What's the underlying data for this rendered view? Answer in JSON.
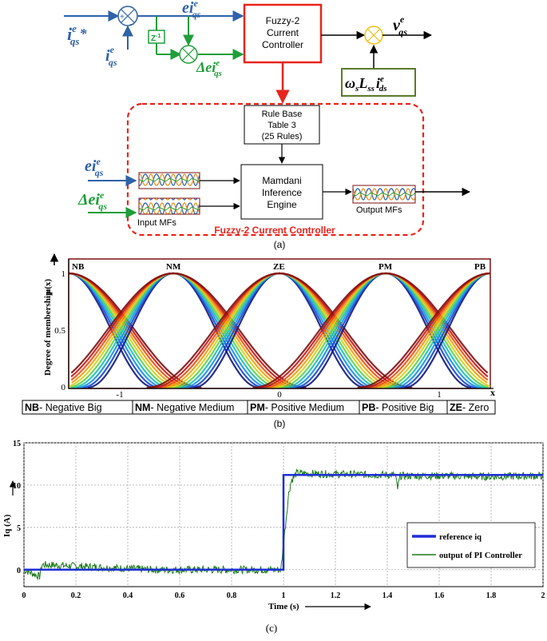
{
  "colors": {
    "blue_signal": "#2f62a8",
    "green_signal": "#1f9e3a",
    "red_box": "#e8241c",
    "yellow_sum": "#f2c014",
    "olive_box": "#5a7a2a",
    "ref_line": "#1e2fd6",
    "pi_line": "#1a7a1a",
    "mf_border": "#7a1010"
  },
  "panel_a": {
    "input_ref_label": "i",
    "input_ref_sup": "e",
    "input_ref_sub": "qs",
    "input_ref_star": "*",
    "feedback_label": "i",
    "feedback_sup": "e",
    "feedback_sub": "qs",
    "sum_plus": "+",
    "sum_minus": "−",
    "error_label": "ei",
    "error_sup": "e",
    "error_sub": "qs",
    "delay_label": "Z",
    "delay_sup": "-1",
    "delta_error_label": "Δei",
    "delta_error_sup": "e",
    "delta_error_sub": "qs",
    "controller_title": [
      "Fuzzy-2",
      "Current",
      "Controller"
    ],
    "output_label": "v",
    "output_sup": "e",
    "output_sub": "qs",
    "decoupling_label": "ω",
    "decoupling_sub1": "s",
    "decoupling_L": "L",
    "decoupling_sub2": "ss",
    "decoupling_i": "i",
    "decoupling_sup": "e",
    "decoupling_sub3": "ds",
    "rule_base": [
      "Rule Base",
      "Table 3",
      "(25 Rules)"
    ],
    "inference": [
      "Mamdani",
      "Inference",
      "Engine"
    ],
    "input_mfs_label": "Input MFs",
    "output_mfs_label": "Output MFs",
    "fuzzy_block_title": "Fuzzy-2 Current Controller",
    "caption": "(a)"
  },
  "panel_b": {
    "caption": "(b)",
    "y_axis_label": "Degree of membership",
    "y_axis_symbol": "μ(x)",
    "x_axis_symbol": "x",
    "mf_names": [
      "NB",
      "NM",
      "ZE",
      "PM",
      "PB"
    ],
    "legend": [
      {
        "abbr": "NB",
        "text": "- Negative Big"
      },
      {
        "abbr": "NM",
        "text": "- Negative Medium"
      },
      {
        "abbr": "PM",
        "text": "- Positive Medium"
      },
      {
        "abbr": "PB",
        "text": "- Positive Big"
      },
      {
        "abbr": "ZE",
        "text": "- Zero"
      }
    ],
    "chart_data": {
      "type": "line",
      "x_ticks": [
        "-1",
        "0",
        "1"
      ],
      "y_ticks": [
        "0",
        "0.5",
        "1"
      ],
      "xlim": [
        -1.33,
        1.33
      ],
      "ylim": [
        0,
        1
      ],
      "peaks": [
        -1.33,
        -0.67,
        0,
        0.67,
        1.33
      ]
    }
  },
  "panel_c": {
    "caption": "(c)",
    "chart_data": {
      "type": "line",
      "xlabel": "Time (s)",
      "ylabel": "Iq (A)",
      "xlim": [
        0,
        2
      ],
      "ylim": [
        -2,
        15
      ],
      "x_ticks": [
        "0",
        "0.2",
        "0.4",
        "0.6",
        "0.8",
        "1",
        "1.2",
        "1.4",
        "1.6",
        "1.8",
        "2"
      ],
      "y_ticks": [
        "0",
        "5",
        "10",
        "15"
      ],
      "grid": true,
      "legend_position": "bottom-right",
      "series": [
        {
          "name": "reference iq",
          "x": [
            0,
            1,
            1,
            2
          ],
          "y": [
            0,
            0,
            11.2,
            11.2
          ]
        },
        {
          "name": "output of PI Controller",
          "x": [
            0,
            0.06,
            0.07,
            0.5,
            0.99,
            1.0,
            1.01,
            1.02,
            1.03,
            1.05,
            1.2,
            1.43,
            1.44,
            1.45,
            1.6,
            1.8,
            2.0
          ],
          "y": [
            0,
            -0.8,
            0.6,
            0,
            0,
            3.0,
            6.0,
            9.0,
            10.5,
            11.4,
            11.3,
            11.2,
            9.6,
            11.1,
            11.1,
            11.0,
            11.1
          ]
        }
      ]
    }
  }
}
